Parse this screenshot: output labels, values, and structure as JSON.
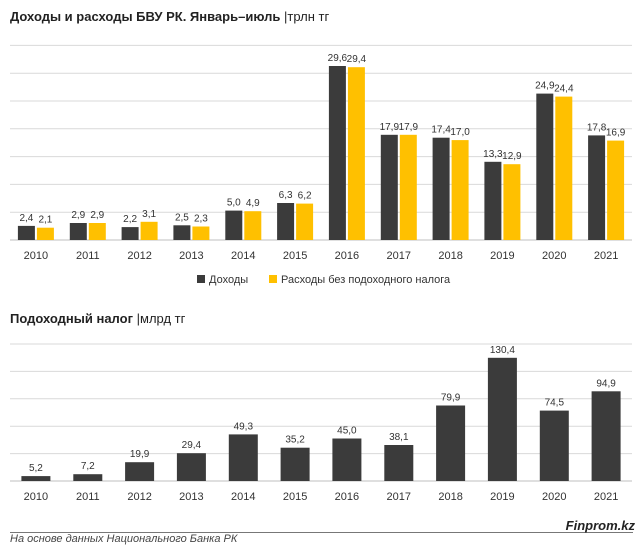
{
  "chart_data": [
    {
      "type": "bar",
      "title": "Доходы и расходы БВУ РК. Январь–июль",
      "unit": "трлн тг",
      "categories": [
        "2010",
        "2011",
        "2012",
        "2013",
        "2014",
        "2015",
        "2016",
        "2017",
        "2018",
        "2019",
        "2020",
        "2021"
      ],
      "series": [
        {
          "name": "Доходы",
          "color": "#3b3b3b",
          "values": [
            2.4,
            2.9,
            2.2,
            2.5,
            5.0,
            6.3,
            29.6,
            17.9,
            17.4,
            13.3,
            24.9,
            17.8
          ],
          "labels": [
            "2,4",
            "2,9",
            "2,2",
            "2,5",
            "5,0",
            "6,3",
            "29,6",
            "17,9",
            "17,4",
            "13,3",
            "24,9",
            "17,8"
          ]
        },
        {
          "name": "Расходы без подоходного налога",
          "color": "#ffc000",
          "values": [
            2.1,
            2.9,
            3.1,
            2.3,
            4.9,
            6.2,
            29.4,
            17.9,
            17.0,
            12.9,
            24.4,
            16.9
          ],
          "labels": [
            "2,1",
            "2,9",
            "3,1",
            "2,3",
            "4,9",
            "6,2",
            "29,4",
            "17,9",
            "17,0",
            "12,9",
            "24,4",
            "16,9"
          ]
        }
      ],
      "ylim": [
        0,
        33
      ],
      "grid": true,
      "legend": "bottom"
    },
    {
      "type": "bar",
      "title": "Подоходный налог",
      "unit": "млрд тг",
      "categories": [
        "2010",
        "2011",
        "2012",
        "2013",
        "2014",
        "2015",
        "2016",
        "2017",
        "2018",
        "2019",
        "2020",
        "2021"
      ],
      "series": [
        {
          "color": "#3b3b3b",
          "values": [
            5.2,
            7.2,
            19.9,
            29.4,
            49.3,
            35.2,
            45.0,
            38.1,
            79.9,
            130.4,
            74.5,
            94.9
          ],
          "labels": [
            "5,2",
            "7,2",
            "19,9",
            "29,4",
            "49,3",
            "35,2",
            "45,0",
            "38,1",
            "79,9",
            "130,4",
            "74,5",
            "94,9"
          ]
        }
      ],
      "ylim": [
        0,
        145
      ],
      "grid": true
    }
  ],
  "footer": {
    "source": "На основе данных Национального Банка РК",
    "brand": "Finprom.kz"
  }
}
